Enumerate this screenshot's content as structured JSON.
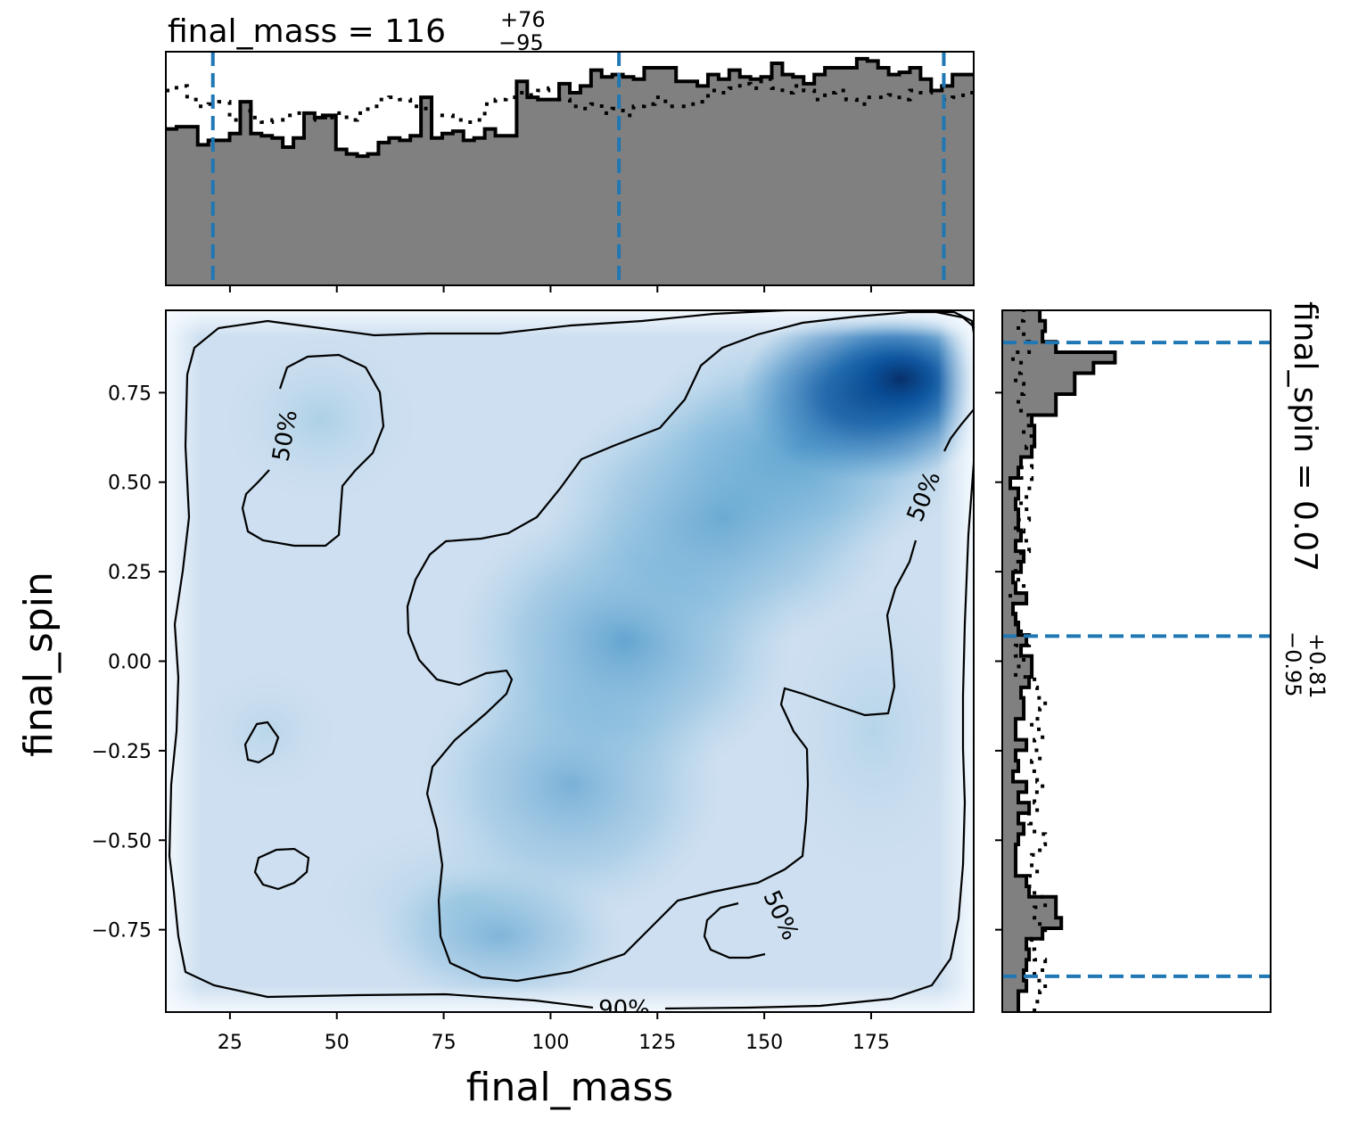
{
  "chart_data": {
    "type": "heatmap",
    "xlabel": "final_mass",
    "ylabel": "final_spin",
    "xlim": [
      10,
      199
    ],
    "ylim": [
      -0.98,
      0.98
    ],
    "x_ticks": [
      25,
      50,
      75,
      100,
      125,
      150,
      175
    ],
    "x_tick_labels": [
      "25",
      "50",
      "75",
      "100",
      "125",
      "150",
      "175"
    ],
    "y_ticks": [
      0.75,
      0.5,
      0.25,
      0.0,
      -0.25,
      -0.5,
      -0.75
    ],
    "y_tick_labels": [
      "0.75",
      "0.50",
      "0.25",
      "0.00",
      "−0.25",
      "−0.50",
      "−0.75"
    ],
    "colormap": "Blues",
    "density_peak": {
      "final_mass": 178,
      "final_spin": 0.78
    },
    "contour_labels": [
      "50%",
      "50%",
      "50%",
      "90%"
    ],
    "mass_marginal": {
      "title_param": "final_mass",
      "median": "116",
      "upper": "+76",
      "lower": "−95",
      "quantile_lines": [
        21,
        116,
        192
      ],
      "bin_edges": [
        10,
        199
      ],
      "hist_solid": [
        0.69,
        0.7,
        0.7,
        0.62,
        0.64,
        0.64,
        0.67,
        0.81,
        0.67,
        0.66,
        0.65,
        0.61,
        0.65,
        0.76,
        0.74,
        0.75,
        0.6,
        0.58,
        0.57,
        0.58,
        0.63,
        0.65,
        0.64,
        0.66,
        0.83,
        0.65,
        0.67,
        0.68,
        0.64,
        0.65,
        0.69,
        0.66,
        0.66,
        0.9,
        0.83,
        0.82,
        0.82,
        0.89,
        0.85,
        0.88,
        0.95,
        0.92,
        0.93,
        0.92,
        0.91,
        0.96,
        0.96,
        0.96,
        0.9,
        0.9,
        0.88,
        0.93,
        0.91,
        0.95,
        0.92,
        0.91,
        0.92,
        0.98,
        0.93,
        0.92,
        0.89,
        0.93,
        0.96,
        0.96,
        0.96,
        1.0,
        0.99,
        0.96,
        0.93,
        0.94,
        0.96,
        0.91,
        0.86,
        0.88,
        0.93,
        0.93
      ],
      "hist_dotted": [
        0.86,
        0.88,
        0.82,
        0.79,
        0.8,
        0.81,
        0.73,
        0.77,
        0.74,
        0.72,
        0.73,
        0.75,
        0.76,
        0.73,
        0.75,
        0.74,
        0.76,
        0.73,
        0.76,
        0.79,
        0.82,
        0.83,
        0.82,
        0.79,
        0.78,
        0.75,
        0.75,
        0.73,
        0.72,
        0.73,
        0.8,
        0.82,
        0.83,
        0.85,
        0.84,
        0.86,
        0.87,
        0.82,
        0.79,
        0.78,
        0.8,
        0.76,
        0.78,
        0.75,
        0.79,
        0.8,
        0.83,
        0.79,
        0.79,
        0.8,
        0.81,
        0.86,
        0.85,
        0.87,
        0.89,
        0.87,
        0.91,
        0.87,
        0.85,
        0.88,
        0.86,
        0.82,
        0.85,
        0.86,
        0.82,
        0.8,
        0.83,
        0.83,
        0.84,
        0.82,
        0.86,
        0.85,
        0.86,
        0.82,
        0.83,
        0.85
      ]
    },
    "spin_marginal": {
      "title_param": "final_spin",
      "median": "0.07",
      "upper": "+0.81",
      "lower": "−0.95",
      "quantile_lines": [
        -0.88,
        0.07,
        0.89
      ],
      "bin_edges": [
        -0.98,
        0.98
      ],
      "hist_solid": [
        0.06,
        0.06,
        0.09,
        0.08,
        0.09,
        0.1,
        0.09,
        0.15,
        0.22,
        0.2,
        0.2,
        0.1,
        0.09,
        0.05,
        0.05,
        0.05,
        0.06,
        0.08,
        0.06,
        0.1,
        0.06,
        0.09,
        0.04,
        0.06,
        0.05,
        0.09,
        0.05,
        0.05,
        0.08,
        0.08,
        0.07,
        0.1,
        0.11,
        0.11,
        0.07,
        0.09,
        0.06,
        0.05,
        0.04,
        0.09,
        0.05,
        0.04,
        0.07,
        0.08,
        0.05,
        0.07,
        0.06,
        0.06,
        0.05,
        0.06,
        0.03,
        0.06,
        0.07,
        0.11,
        0.12,
        0.12,
        0.11,
        0.2,
        0.2,
        0.27,
        0.27,
        0.34,
        0.42,
        0.2,
        0.15,
        0.16,
        0.14
      ],
      "hist_dotted": [
        0.12,
        0.14,
        0.16,
        0.12,
        0.16,
        0.12,
        0.11,
        0.16,
        0.14,
        0.12,
        0.16,
        0.12,
        0.1,
        0.13,
        0.11,
        0.14,
        0.16,
        0.12,
        0.1,
        0.13,
        0.12,
        0.15,
        0.13,
        0.11,
        0.14,
        0.12,
        0.15,
        0.11,
        0.14,
        0.16,
        0.13,
        0.12,
        0.05,
        0.08,
        0.05,
        0.1,
        0.07,
        0.06,
        0.05,
        0.03,
        0.08,
        0.06,
        0.05,
        0.07,
        0.1,
        0.08,
        0.05,
        0.1,
        0.07,
        0.09,
        0.11,
        0.07,
        0.11,
        0.09,
        0.12,
        0.08,
        0.1,
        0.07,
        0.06,
        0.08,
        0.05,
        0.07,
        0.04,
        0.1,
        0.08,
        0.06,
        0.08
      ]
    }
  }
}
